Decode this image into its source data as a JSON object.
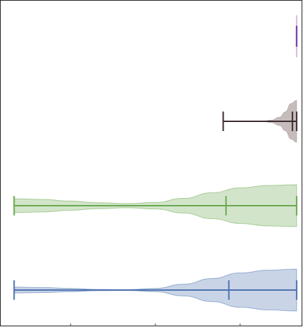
{
  "chart_data": {
    "type": "violin",
    "orientation": "horizontal",
    "title": "",
    "xlabel": "",
    "ylabel": "",
    "xlim": [
      -0.05,
      1.02
    ],
    "grid": false,
    "legend": "none",
    "series": [
      {
        "color": "#4c72b0",
        "min": 0.0,
        "median": 0.76,
        "max": 1.0,
        "density": [
          [
            0.0,
            0.14
          ],
          [
            0.1,
            0.12
          ],
          [
            0.2,
            0.08
          ],
          [
            0.3,
            0.03
          ],
          [
            0.4,
            0.02
          ],
          [
            0.5,
            0.08
          ],
          [
            0.6,
            0.28
          ],
          [
            0.7,
            0.55
          ],
          [
            0.8,
            0.82
          ],
          [
            0.9,
            0.95
          ],
          [
            1.0,
            1.0
          ]
        ]
      },
      {
        "color": "#6aa84f",
        "min": 0.0,
        "median": 0.75,
        "max": 1.0,
        "density": [
          [
            0.0,
            0.33
          ],
          [
            0.1,
            0.3
          ],
          [
            0.2,
            0.22
          ],
          [
            0.3,
            0.14
          ],
          [
            0.4,
            0.1
          ],
          [
            0.5,
            0.16
          ],
          [
            0.6,
            0.35
          ],
          [
            0.7,
            0.62
          ],
          [
            0.8,
            0.85
          ],
          [
            0.9,
            0.97
          ],
          [
            1.0,
            1.0
          ]
        ]
      },
      {
        "color": "#3b2a2e",
        "fill": "#a08f8f",
        "min": 0.74,
        "median": 0.985,
        "max": 1.0,
        "density": [
          [
            0.88,
            0.0
          ],
          [
            0.91,
            0.06
          ],
          [
            0.94,
            0.2
          ],
          [
            0.96,
            0.45
          ],
          [
            0.98,
            0.85
          ],
          [
            1.0,
            1.0
          ]
        ]
      },
      {
        "color": "#7b3fa0",
        "min": 1.0,
        "median": 1.0,
        "max": 1.0,
        "density": []
      }
    ]
  }
}
